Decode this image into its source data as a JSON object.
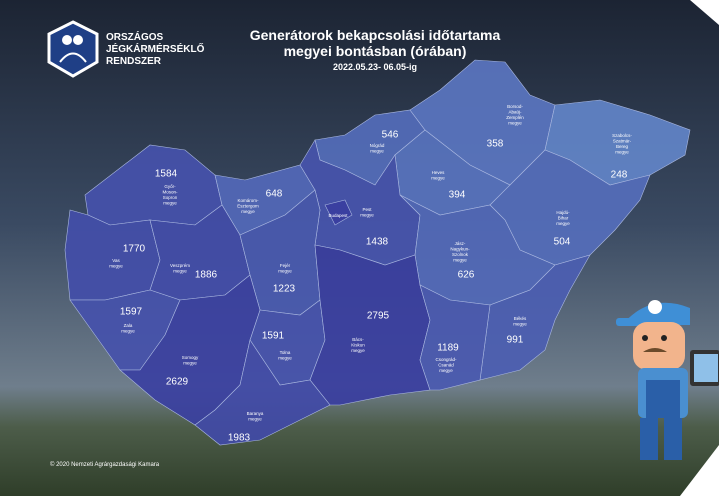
{
  "logo": {
    "lines": [
      "ORSZÁGOS",
      "JÉGKÁRMÉRSÉKLŐ",
      "RENDSZER"
    ]
  },
  "header": {
    "title_lines": [
      "Generátorok bekapcsolási időtartama",
      "megyei bontásban (órában)"
    ],
    "subtitle": "2022.05.23- 06.05-ig"
  },
  "counties": [
    {
      "name_lines": [
        "Győr-",
        "Moson-",
        "Sopron",
        "megye"
      ],
      "value": 1584
    },
    {
      "name_lines": [
        "Komárom-",
        "Esztergom",
        "megye"
      ],
      "value": 648
    },
    {
      "name_lines": [
        "Nógrád",
        "megye"
      ],
      "value": 546
    },
    {
      "name_lines": [
        "Borsod-",
        "Abaúj-",
        "Zemplén",
        "megye"
      ],
      "value": 358
    },
    {
      "name_lines": [
        "Szabolcs-",
        "Szatmár-",
        "Bereg",
        "megye"
      ],
      "value": 248
    },
    {
      "name_lines": [
        "Heves",
        "megye"
      ],
      "value": 394
    },
    {
      "name_lines": [
        "Pest",
        "megye"
      ],
      "value": 1438
    },
    {
      "name_lines": [
        "Budapest"
      ]
    },
    {
      "name_lines": [
        "Hajdú-",
        "Bihar",
        "megye"
      ],
      "value": 504
    },
    {
      "name_lines": [
        "Vas",
        "megye"
      ],
      "value": 1770
    },
    {
      "name_lines": [
        "Veszprém",
        "megye"
      ],
      "value": 1886
    },
    {
      "name_lines": [
        "Fejér",
        "megye"
      ],
      "value": 1223
    },
    {
      "name_lines": [
        "Jász-",
        "Nagykun-",
        "Szolnok",
        "megye"
      ],
      "value": 626
    },
    {
      "name_lines": [
        "Zala",
        "megye"
      ],
      "value": 1597
    },
    {
      "name_lines": [
        "Tolna",
        "megye"
      ],
      "value": 1591
    },
    {
      "name_lines": [
        "Bács-",
        "Kiskun",
        "megye"
      ],
      "value": 2795
    },
    {
      "name_lines": [
        "Békés",
        "megye"
      ],
      "value": 991
    },
    {
      "name_lines": [
        "Csongrád-",
        "Csanád",
        "megye"
      ],
      "value": 1189
    },
    {
      "name_lines": [
        "Somogy",
        "megye"
      ],
      "value": 2629
    },
    {
      "name_lines": [
        "Baranya",
        "megye"
      ],
      "value": 1983
    }
  ],
  "footer": {
    "copyright": "© 2020 Nemzeti Agrárgazdasági Kamara"
  }
}
